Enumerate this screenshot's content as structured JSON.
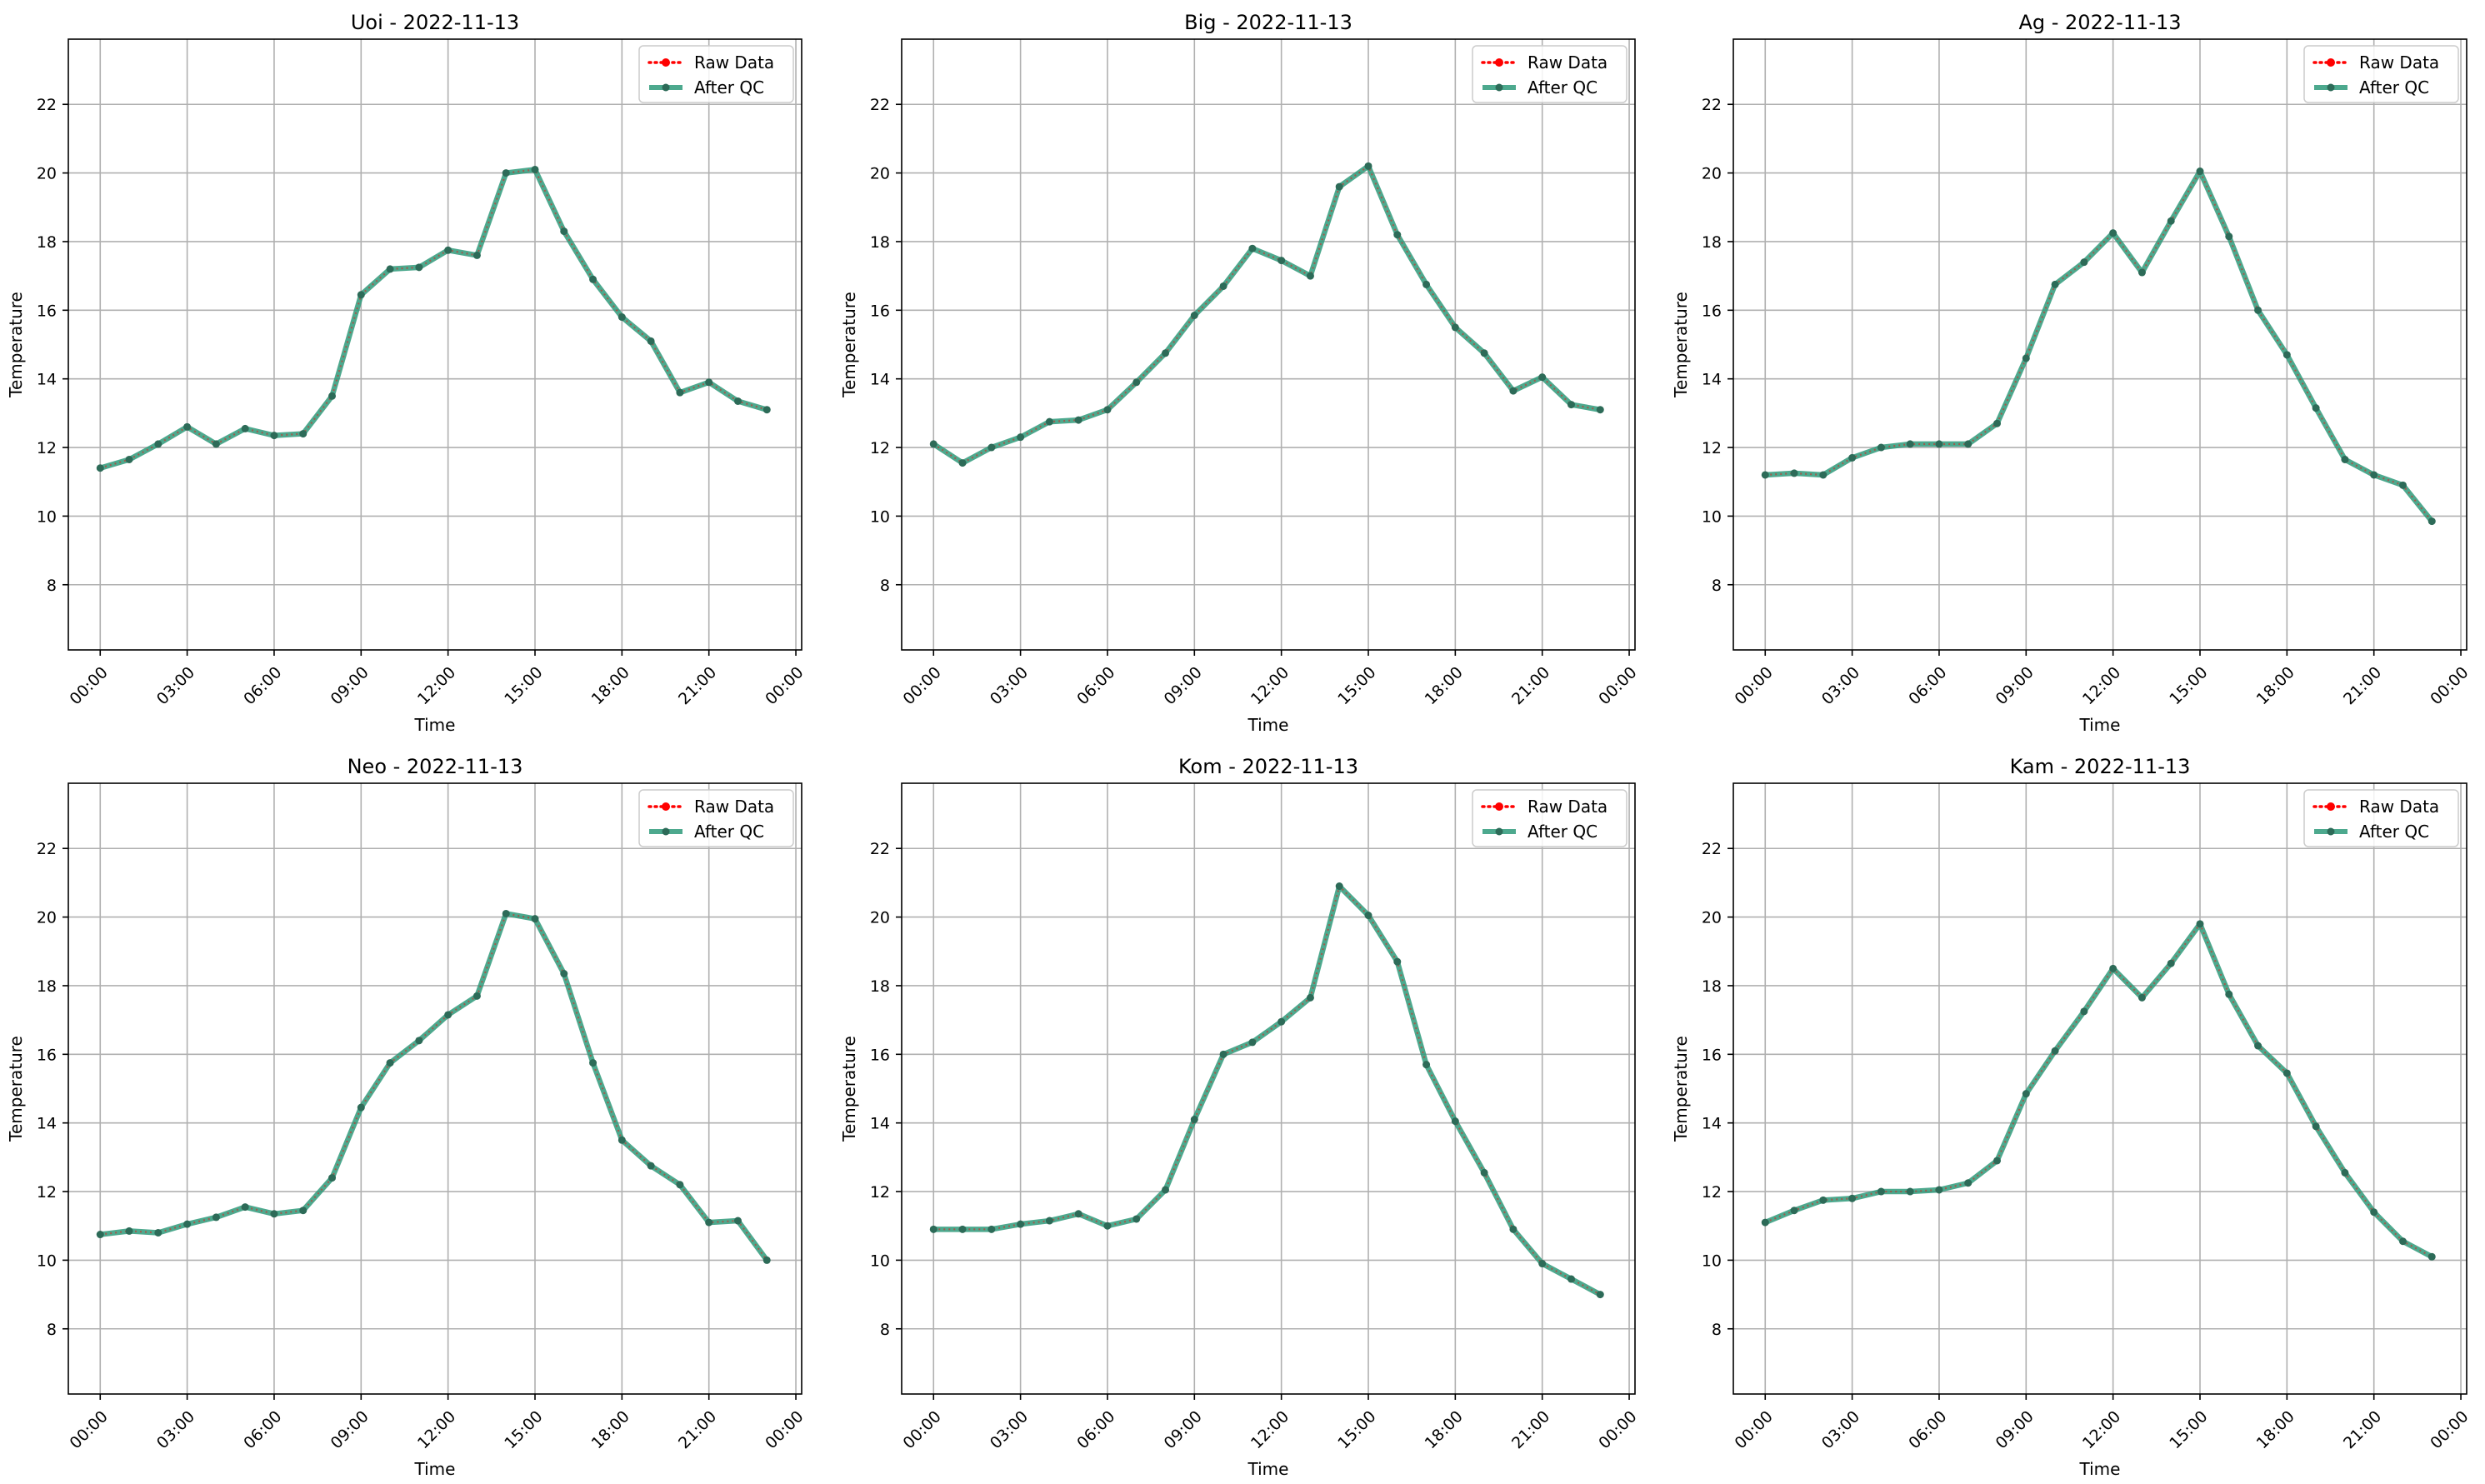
{
  "colors": {
    "raw": "#ff0000",
    "qc": "#2e9a7a",
    "qc_marker": "#2d6b58"
  },
  "chart_data": [
    {
      "type": "line",
      "title": "Uoi - 2022-11-13",
      "xlabel": "Time",
      "ylabel": "Temperature",
      "x_hours": [
        0,
        1,
        2,
        3,
        4,
        5,
        6,
        7,
        8,
        9,
        10,
        11,
        12,
        13,
        14,
        15,
        16,
        17,
        18,
        19,
        20,
        21,
        22,
        23
      ],
      "xlim_hours": [
        -1.1,
        24.2
      ],
      "ylim": [
        6.1,
        23.9
      ],
      "yticks": [
        "8",
        "10",
        "12",
        "14",
        "16",
        "18",
        "20",
        "22"
      ],
      "xticks": [
        "00:00",
        "03:00",
        "06:00",
        "09:00",
        "12:00",
        "15:00",
        "18:00",
        "21:00",
        "00:00"
      ],
      "grid": true,
      "legend_position": "top-right",
      "series": [
        {
          "name": "Raw Data",
          "values": [
            11.4,
            11.65,
            12.1,
            12.6,
            12.1,
            12.55,
            12.35,
            12.4,
            13.5,
            16.45,
            17.2,
            17.25,
            17.75,
            17.6,
            20.0,
            20.1,
            18.3,
            16.9,
            15.8,
            15.1,
            13.6,
            13.9,
            13.35,
            13.1
          ]
        },
        {
          "name": "After QC",
          "values": [
            11.4,
            11.65,
            12.1,
            12.6,
            12.1,
            12.55,
            12.35,
            12.4,
            13.5,
            16.45,
            17.2,
            17.25,
            17.75,
            17.6,
            20.0,
            20.1,
            18.3,
            16.9,
            15.8,
            15.1,
            13.6,
            13.9,
            13.35,
            13.1
          ]
        }
      ]
    },
    {
      "type": "line",
      "title": "Big - 2022-11-13",
      "xlabel": "Time",
      "ylabel": "Temperature",
      "x_hours": [
        0,
        1,
        2,
        3,
        4,
        5,
        6,
        7,
        8,
        9,
        10,
        11,
        12,
        13,
        14,
        15,
        16,
        17,
        18,
        19,
        20,
        21,
        22,
        23
      ],
      "xlim_hours": [
        -1.1,
        24.2
      ],
      "ylim": [
        6.1,
        23.9
      ],
      "yticks": [
        "8",
        "10",
        "12",
        "14",
        "16",
        "18",
        "20",
        "22"
      ],
      "xticks": [
        "00:00",
        "03:00",
        "06:00",
        "09:00",
        "12:00",
        "15:00",
        "18:00",
        "21:00",
        "00:00"
      ],
      "grid": true,
      "legend_position": "top-right",
      "series": [
        {
          "name": "Raw Data",
          "values": [
            12.1,
            11.55,
            12.0,
            12.3,
            12.75,
            12.8,
            13.1,
            13.9,
            14.75,
            15.85,
            16.7,
            17.8,
            17.45,
            17.0,
            19.6,
            20.2,
            18.2,
            16.75,
            15.5,
            14.75,
            13.65,
            14.05,
            13.25,
            13.1
          ]
        },
        {
          "name": "After QC",
          "values": [
            12.1,
            11.55,
            12.0,
            12.3,
            12.75,
            12.8,
            13.1,
            13.9,
            14.75,
            15.85,
            16.7,
            17.8,
            17.45,
            17.0,
            19.6,
            20.2,
            18.2,
            16.75,
            15.5,
            14.75,
            13.65,
            14.05,
            13.25,
            13.1
          ]
        }
      ]
    },
    {
      "type": "line",
      "title": "Ag - 2022-11-13",
      "xlabel": "Time",
      "ylabel": "Temperature",
      "x_hours": [
        0,
        1,
        2,
        3,
        4,
        5,
        6,
        7,
        8,
        9,
        10,
        11,
        12,
        13,
        14,
        15,
        16,
        17,
        18,
        19,
        20,
        21,
        22,
        23
      ],
      "xlim_hours": [
        -1.1,
        24.2
      ],
      "ylim": [
        6.1,
        23.9
      ],
      "yticks": [
        "8",
        "10",
        "12",
        "14",
        "16",
        "18",
        "20",
        "22"
      ],
      "xticks": [
        "00:00",
        "03:00",
        "06:00",
        "09:00",
        "12:00",
        "15:00",
        "18:00",
        "21:00",
        "00:00"
      ],
      "grid": true,
      "legend_position": "top-right",
      "series": [
        {
          "name": "Raw Data",
          "values": [
            11.2,
            11.25,
            11.2,
            11.7,
            12.0,
            12.1,
            12.1,
            12.1,
            12.7,
            14.6,
            16.75,
            17.4,
            18.25,
            17.1,
            18.6,
            20.05,
            18.15,
            16.0,
            14.7,
            13.15,
            11.65,
            11.2,
            10.9,
            9.85
          ]
        },
        {
          "name": "After QC",
          "values": [
            11.2,
            11.25,
            11.2,
            11.7,
            12.0,
            12.1,
            12.1,
            12.1,
            12.7,
            14.6,
            16.75,
            17.4,
            18.25,
            17.1,
            18.6,
            20.05,
            18.15,
            16.0,
            14.7,
            13.15,
            11.65,
            11.2,
            10.9,
            9.85
          ]
        }
      ]
    },
    {
      "type": "line",
      "title": "Neo - 2022-11-13",
      "xlabel": "Time",
      "ylabel": "Temperature",
      "x_hours": [
        0,
        1,
        2,
        3,
        4,
        5,
        6,
        7,
        8,
        9,
        10,
        11,
        12,
        13,
        14,
        15,
        16,
        17,
        18,
        19,
        20,
        21,
        22,
        23
      ],
      "xlim_hours": [
        -1.1,
        24.2
      ],
      "ylim": [
        6.1,
        23.9
      ],
      "yticks": [
        "8",
        "10",
        "12",
        "14",
        "16",
        "18",
        "20",
        "22"
      ],
      "xticks": [
        "00:00",
        "03:00",
        "06:00",
        "09:00",
        "12:00",
        "15:00",
        "18:00",
        "21:00",
        "00:00"
      ],
      "grid": true,
      "legend_position": "top-right",
      "series": [
        {
          "name": "Raw Data",
          "values": [
            10.75,
            10.85,
            10.8,
            11.05,
            11.25,
            11.55,
            11.35,
            11.45,
            12.4,
            14.45,
            15.75,
            16.4,
            17.15,
            17.7,
            20.1,
            19.95,
            18.35,
            15.75,
            13.5,
            12.75,
            12.2,
            11.1,
            11.15,
            10.0
          ]
        },
        {
          "name": "After QC",
          "values": [
            10.75,
            10.85,
            10.8,
            11.05,
            11.25,
            11.55,
            11.35,
            11.45,
            12.4,
            14.45,
            15.75,
            16.4,
            17.15,
            17.7,
            20.1,
            19.95,
            18.35,
            15.75,
            13.5,
            12.75,
            12.2,
            11.1,
            11.15,
            10.0
          ]
        }
      ]
    },
    {
      "type": "line",
      "title": "Kom - 2022-11-13",
      "xlabel": "Time",
      "ylabel": "Temperature",
      "x_hours": [
        0,
        1,
        2,
        3,
        4,
        5,
        6,
        7,
        8,
        9,
        10,
        11,
        12,
        13,
        14,
        15,
        16,
        17,
        18,
        19,
        20,
        21,
        22,
        23
      ],
      "xlim_hours": [
        -1.1,
        24.2
      ],
      "ylim": [
        6.1,
        23.9
      ],
      "yticks": [
        "8",
        "10",
        "12",
        "14",
        "16",
        "18",
        "20",
        "22"
      ],
      "xticks": [
        "00:00",
        "03:00",
        "06:00",
        "09:00",
        "12:00",
        "15:00",
        "18:00",
        "21:00",
        "00:00"
      ],
      "grid": true,
      "legend_position": "top-right",
      "series": [
        {
          "name": "Raw Data",
          "values": [
            10.9,
            10.9,
            10.9,
            11.05,
            11.15,
            11.35,
            11.0,
            11.2,
            12.05,
            14.1,
            16.0,
            16.35,
            16.95,
            17.65,
            20.9,
            20.05,
            18.7,
            15.7,
            14.05,
            12.55,
            10.9,
            9.9,
            9.45,
            9.0
          ]
        },
        {
          "name": "After QC",
          "values": [
            10.9,
            10.9,
            10.9,
            11.05,
            11.15,
            11.35,
            11.0,
            11.2,
            12.05,
            14.1,
            16.0,
            16.35,
            16.95,
            17.65,
            20.9,
            20.05,
            18.7,
            15.7,
            14.05,
            12.55,
            10.9,
            9.9,
            9.45,
            9.0
          ]
        }
      ]
    },
    {
      "type": "line",
      "title": "Kam - 2022-11-13",
      "xlabel": "Time",
      "ylabel": "Temperature",
      "x_hours": [
        0,
        1,
        2,
        3,
        4,
        5,
        6,
        7,
        8,
        9,
        10,
        11,
        12,
        13,
        14,
        15,
        16,
        17,
        18,
        19,
        20,
        21,
        22,
        23
      ],
      "xlim_hours": [
        -1.1,
        24.2
      ],
      "ylim": [
        6.1,
        23.9
      ],
      "yticks": [
        "8",
        "10",
        "12",
        "14",
        "16",
        "18",
        "20",
        "22"
      ],
      "xticks": [
        "00:00",
        "03:00",
        "06:00",
        "09:00",
        "12:00",
        "15:00",
        "18:00",
        "21:00",
        "00:00"
      ],
      "grid": true,
      "legend_position": "top-right",
      "series": [
        {
          "name": "Raw Data",
          "values": [
            11.1,
            11.45,
            11.75,
            11.8,
            12.0,
            12.0,
            12.05,
            12.25,
            12.9,
            14.85,
            16.1,
            17.25,
            18.5,
            17.65,
            18.65,
            19.8,
            17.75,
            16.25,
            15.45,
            13.9,
            12.55,
            11.4,
            10.55,
            10.1
          ]
        },
        {
          "name": "After QC",
          "values": [
            11.1,
            11.45,
            11.75,
            11.8,
            12.0,
            12.0,
            12.05,
            12.25,
            12.9,
            14.85,
            16.1,
            17.25,
            18.5,
            17.65,
            18.65,
            19.8,
            17.75,
            16.25,
            15.45,
            13.9,
            12.55,
            11.4,
            10.55,
            10.1
          ]
        }
      ]
    }
  ]
}
